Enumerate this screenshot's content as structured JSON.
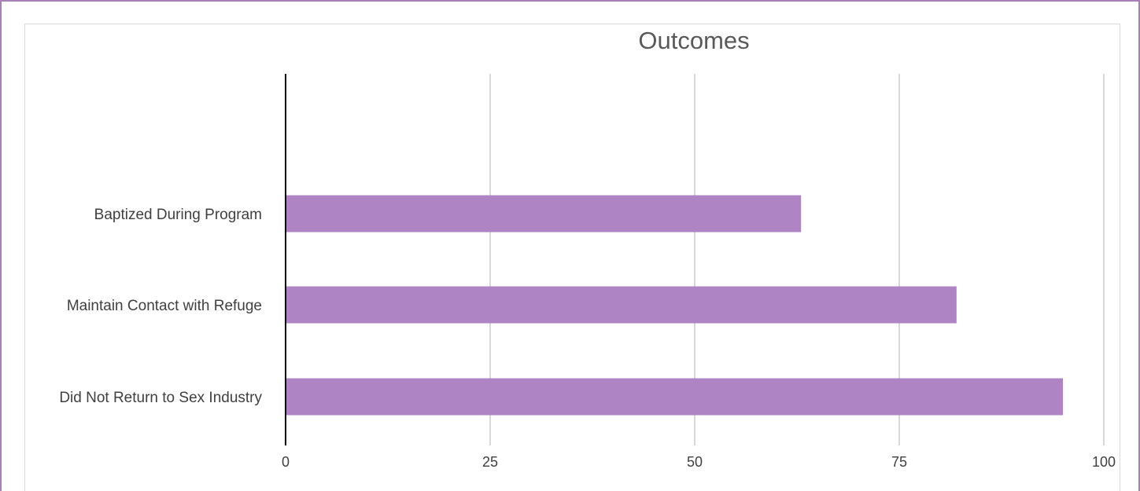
{
  "chart_data": {
    "type": "bar",
    "orientation": "horizontal",
    "title": "Outcomes",
    "categories": [
      "Did Not Return to Sex Industry",
      "Maintain Contact with Refuge",
      "Baptized During Program"
    ],
    "values": [
      95,
      82,
      63
    ],
    "xlim": [
      0,
      100
    ],
    "x_ticks": [
      "0",
      "25",
      "50",
      "75",
      "100"
    ],
    "tick_values": [
      0,
      25,
      50,
      75,
      100
    ],
    "xlabel": "",
    "ylabel": "",
    "grid": "vertical",
    "legend": "none",
    "colors": {
      "bar": "#ae84c4",
      "grid": "#d9d9d9",
      "axis": "#000000",
      "text": "#404040",
      "title": "#595959",
      "frame": "#a87fb8"
    }
  }
}
